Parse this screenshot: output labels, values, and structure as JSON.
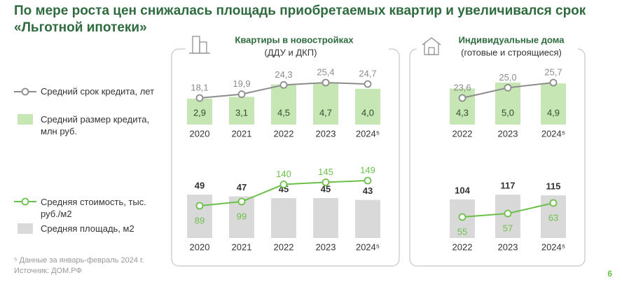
{
  "title": "По мере роста цен снижалась площадь приобретаемых квартир и увеличивался срок «Льготной ипотеки»",
  "panels": [
    {
      "title": "Квартиры в новостройках",
      "subtitle": "(ДДУ и ДКП)"
    },
    {
      "title": "Индивидуальные дома",
      "subtitle": "(готовые и строящиеся)"
    }
  ],
  "footnote": "⁵ Данные за январь-февраль 2024 г.",
  "source": "Источник: ДОМ.РФ",
  "page_number": "6",
  "chart_data": [
    {
      "type": "combo",
      "categories": [
        "2020",
        "2021",
        "2022",
        "2023",
        "2024⁵"
      ],
      "series": [
        {
          "type": "line",
          "name": "Средний срок кредита, лет",
          "color": "#8c8c8c",
          "values": [
            18.1,
            19.9,
            24.3,
            25.4,
            24.7
          ],
          "value_labels": [
            "18,1",
            "19,9",
            "24,3",
            "25,4",
            "24,7"
          ]
        },
        {
          "type": "bar",
          "name": "Средний размер кредита, млн руб.",
          "color": "#c6e6b3",
          "values": [
            2.9,
            3.1,
            4.5,
            4.7,
            4.0
          ],
          "value_labels": [
            "2,9",
            "3,1",
            "4,5",
            "4,7",
            "4,0"
          ]
        }
      ]
    },
    {
      "type": "combo",
      "categories": [
        "2020",
        "2021",
        "2022",
        "2023",
        "2024⁵"
      ],
      "series": [
        {
          "type": "line",
          "name": "Средняя стоимость, тыс. руб./м2",
          "color": "#6cc04a",
          "values": [
            89,
            99,
            140,
            145,
            149
          ]
        },
        {
          "type": "bar",
          "name": "Средняя площадь, м2",
          "color": "#d9d9d9",
          "values": [
            49,
            47,
            45,
            45,
            43
          ]
        }
      ]
    },
    {
      "type": "combo",
      "categories": [
        "2022",
        "2023",
        "2024⁵"
      ],
      "series": [
        {
          "type": "line",
          "color": "#8c8c8c",
          "values": [
            23.6,
            25.0,
            25.7
          ],
          "value_labels": [
            "23,6",
            "25,0",
            "25,7"
          ]
        },
        {
          "type": "bar",
          "color": "#c6e6b3",
          "values": [
            4.3,
            5.0,
            4.9
          ],
          "value_labels": [
            "4,3",
            "5,0",
            "4,9"
          ]
        }
      ]
    },
    {
      "type": "combo",
      "categories": [
        "2022",
        "2023",
        "2024⁵"
      ],
      "series": [
        {
          "type": "line",
          "color": "#6cc04a",
          "values": [
            55,
            57,
            63
          ]
        },
        {
          "type": "bar",
          "color": "#d9d9d9",
          "values": [
            104,
            117,
            115
          ]
        }
      ]
    }
  ]
}
